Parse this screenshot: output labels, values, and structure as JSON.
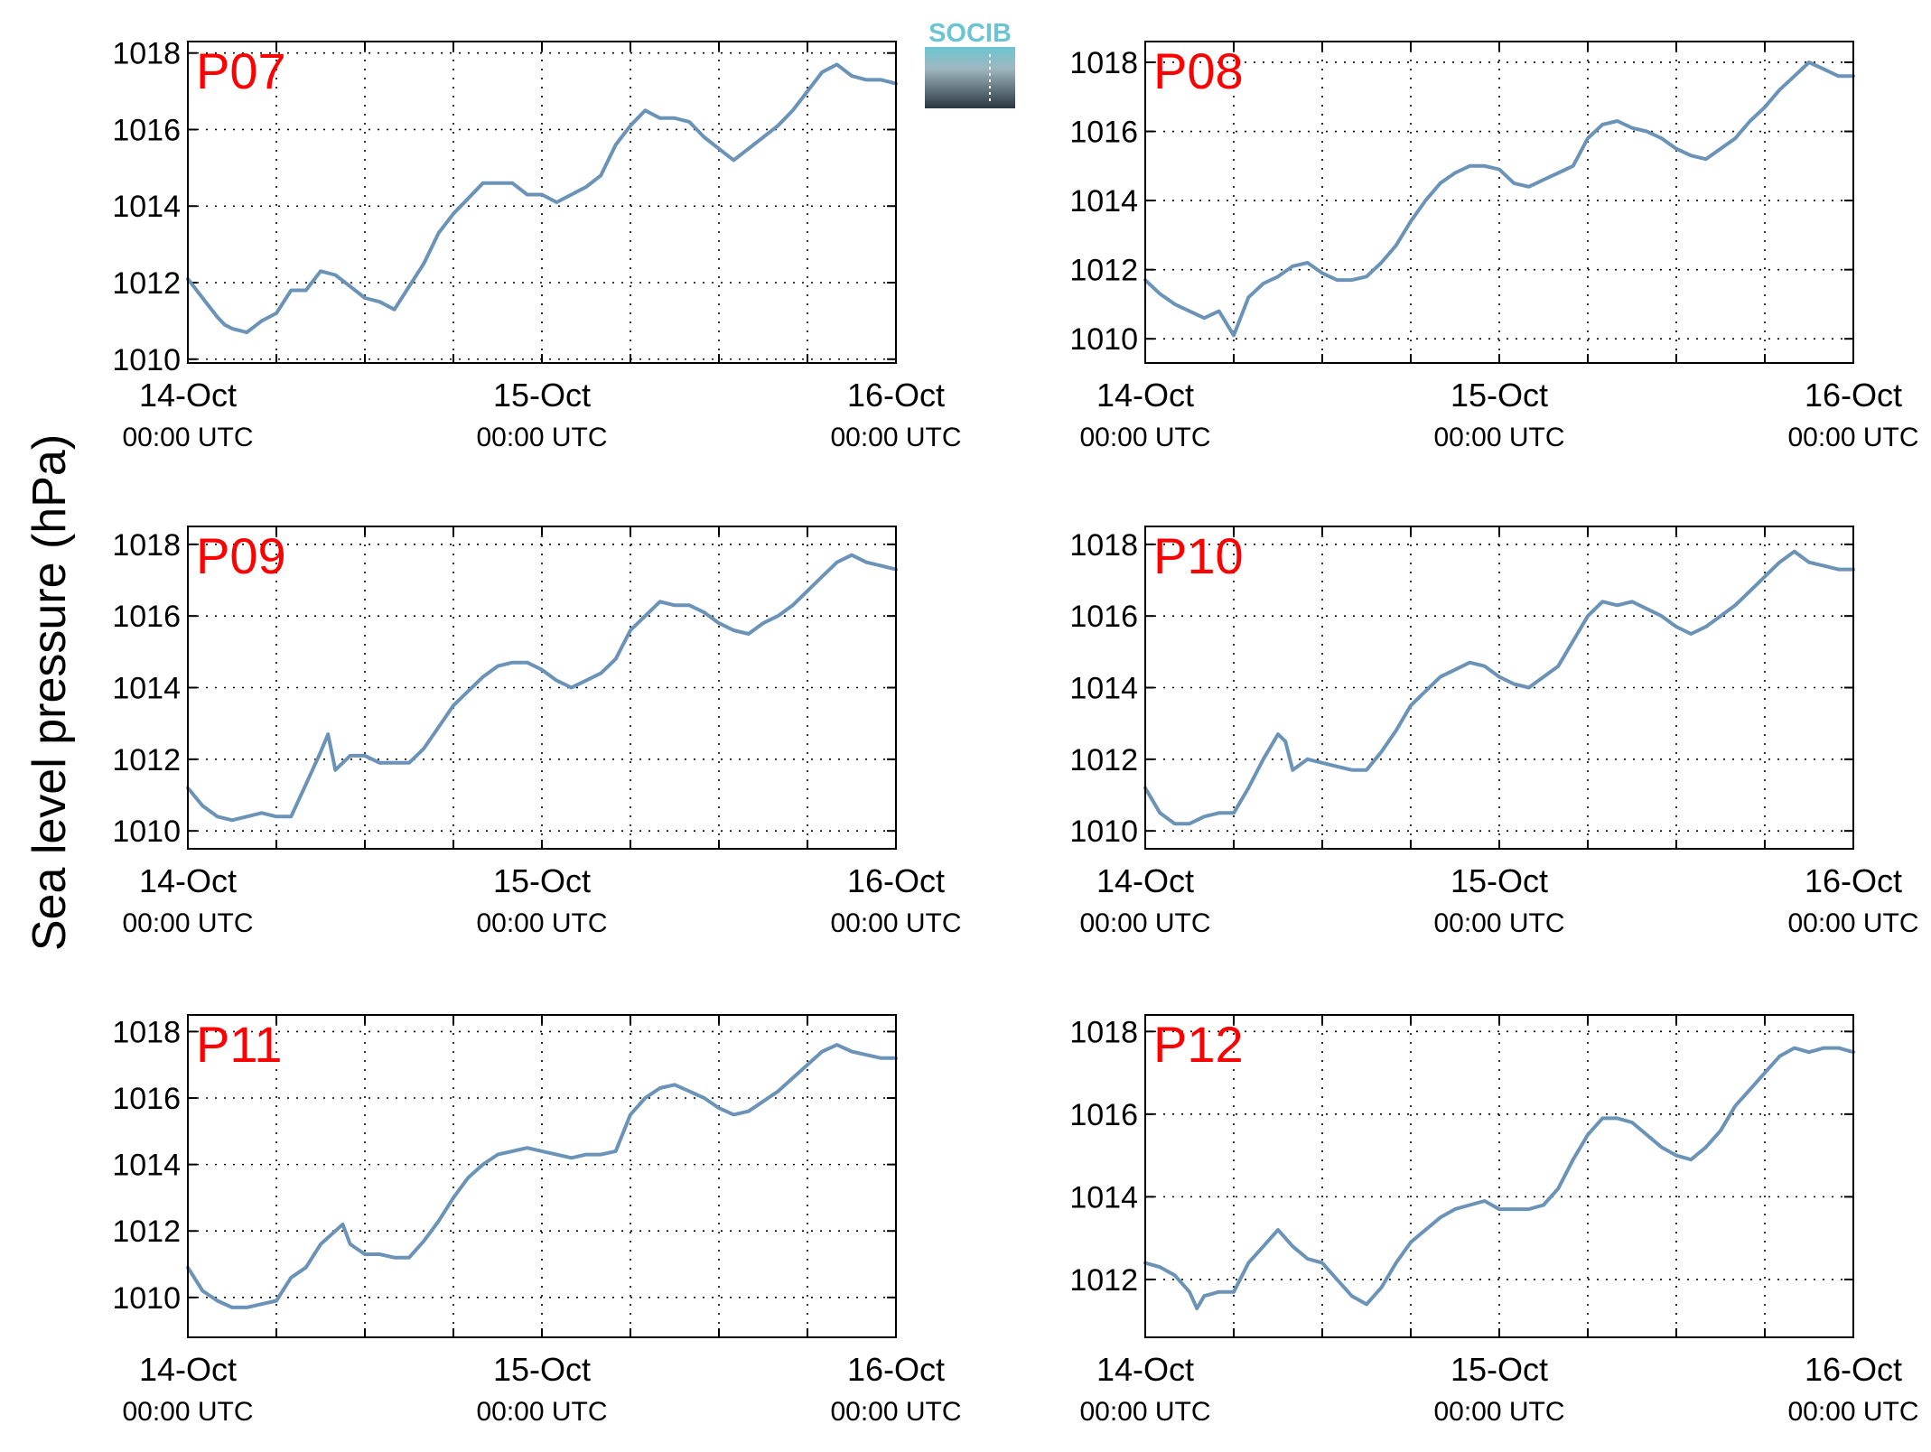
{
  "ylabel": "Sea level pressure (hPa)",
  "logo_text": "SOCIB",
  "colors": {
    "series": "#6a93b7",
    "label": "#ff0000",
    "logo_top": "#6cc4d2",
    "logo_bottom": "#2b3742"
  },
  "xticks": [
    {
      "day": "14-Oct",
      "time": "00:00 UTC"
    },
    {
      "day": "15-Oct",
      "time": "00:00 UTC"
    },
    {
      "day": "16-Oct",
      "time": "00:00 UTC"
    }
  ],
  "chart_data": [
    {
      "type": "line",
      "label": "P07",
      "grid": true,
      "xlabel": "",
      "xlim_hours": [
        0,
        48
      ],
      "yticks": [
        1010,
        1012,
        1014,
        1016,
        1018
      ],
      "ylim": [
        1009.9,
        1018.3
      ],
      "series": [
        {
          "x": [
            0,
            1,
            2,
            2.5,
            3,
            4,
            5,
            6,
            7,
            8,
            9,
            10,
            11,
            12,
            13,
            14,
            15,
            16,
            17,
            18,
            19,
            20,
            21,
            22,
            23,
            24,
            25,
            26,
            27,
            28,
            29,
            30,
            31,
            32,
            33,
            34,
            35,
            36,
            37,
            38,
            39,
            40,
            41,
            42,
            43,
            44,
            45,
            46,
            47,
            48
          ],
          "y": [
            1012.1,
            1011.6,
            1011.1,
            1010.9,
            1010.8,
            1010.7,
            1011.0,
            1011.2,
            1011.8,
            1011.8,
            1012.3,
            1012.2,
            1011.9,
            1011.6,
            1011.5,
            1011.3,
            1011.9,
            1012.5,
            1013.3,
            1013.8,
            1014.2,
            1014.6,
            1014.6,
            1014.6,
            1014.3,
            1014.3,
            1014.1,
            1014.3,
            1014.5,
            1014.8,
            1015.6,
            1016.1,
            1016.5,
            1016.3,
            1016.3,
            1016.2,
            1015.8,
            1015.5,
            1015.2,
            1015.5,
            1015.8,
            1016.1,
            1016.5,
            1017.0,
            1017.5,
            1017.7,
            1017.4,
            1017.3,
            1017.3,
            1017.2
          ]
        }
      ]
    },
    {
      "type": "line",
      "label": "P08",
      "grid": true,
      "xlabel": "",
      "xlim_hours": [
        0,
        48
      ],
      "yticks": [
        1010,
        1012,
        1014,
        1016,
        1018
      ],
      "ylim": [
        1009.3,
        1018.6
      ],
      "series": [
        {
          "x": [
            0,
            1,
            2,
            3,
            4,
            5,
            6,
            7,
            8,
            9,
            10,
            11,
            12,
            13,
            14,
            15,
            16,
            17,
            18,
            19,
            20,
            21,
            22,
            23,
            24,
            25,
            26,
            27,
            28,
            29,
            30,
            31,
            32,
            33,
            34,
            35,
            36,
            37,
            38,
            39,
            40,
            41,
            42,
            43,
            44,
            45,
            46,
            47,
            48
          ],
          "y": [
            1011.7,
            1011.3,
            1011.0,
            1010.8,
            1010.6,
            1010.8,
            1010.1,
            1011.2,
            1011.6,
            1011.8,
            1012.1,
            1012.2,
            1011.9,
            1011.7,
            1011.7,
            1011.8,
            1012.2,
            1012.7,
            1013.4,
            1014.0,
            1014.5,
            1014.8,
            1015.0,
            1015.0,
            1014.9,
            1014.5,
            1014.4,
            1014.6,
            1014.8,
            1015.0,
            1015.8,
            1016.2,
            1016.3,
            1016.1,
            1016.0,
            1015.8,
            1015.5,
            1015.3,
            1015.2,
            1015.5,
            1015.8,
            1016.3,
            1016.7,
            1017.2,
            1017.6,
            1018.0,
            1017.8,
            1017.6,
            1017.6
          ]
        }
      ]
    },
    {
      "type": "line",
      "label": "P09",
      "grid": true,
      "xlabel": "",
      "xlim_hours": [
        0,
        48
      ],
      "yticks": [
        1010,
        1012,
        1014,
        1016,
        1018
      ],
      "ylim": [
        1009.5,
        1018.5
      ],
      "series": [
        {
          "x": [
            0,
            1,
            2,
            3,
            4,
            5,
            6,
            7,
            8,
            9,
            9.5,
            10,
            11,
            12,
            13,
            14,
            15,
            16,
            17,
            18,
            19,
            20,
            21,
            22,
            23,
            24,
            25,
            26,
            27,
            28,
            29,
            30,
            31,
            32,
            33,
            34,
            35,
            36,
            37,
            38,
            39,
            40,
            41,
            42,
            43,
            44,
            45,
            46,
            47,
            48
          ],
          "y": [
            1011.2,
            1010.7,
            1010.4,
            1010.3,
            1010.4,
            1010.5,
            1010.4,
            1010.4,
            1011.3,
            1012.2,
            1012.7,
            1011.7,
            1012.1,
            1012.1,
            1011.9,
            1011.9,
            1011.9,
            1012.3,
            1012.9,
            1013.5,
            1013.9,
            1014.3,
            1014.6,
            1014.7,
            1014.7,
            1014.5,
            1014.2,
            1014.0,
            1014.2,
            1014.4,
            1014.8,
            1015.6,
            1016.0,
            1016.4,
            1016.3,
            1016.3,
            1016.1,
            1015.8,
            1015.6,
            1015.5,
            1015.8,
            1016.0,
            1016.3,
            1016.7,
            1017.1,
            1017.5,
            1017.7,
            1017.5,
            1017.4,
            1017.3
          ]
        }
      ]
    },
    {
      "type": "line",
      "label": "P10",
      "grid": true,
      "xlabel": "",
      "xlim_hours": [
        0,
        48
      ],
      "yticks": [
        1010,
        1012,
        1014,
        1016,
        1018
      ],
      "ylim": [
        1009.5,
        1018.5
      ],
      "series": [
        {
          "x": [
            0,
            1,
            2,
            3,
            4,
            5,
            6,
            7,
            8,
            9,
            9.5,
            10,
            11,
            12,
            13,
            14,
            15,
            16,
            17,
            18,
            19,
            20,
            21,
            22,
            23,
            24,
            25,
            26,
            27,
            28,
            29,
            30,
            31,
            32,
            33,
            34,
            35,
            36,
            37,
            38,
            39,
            40,
            41,
            42,
            43,
            44,
            45,
            46,
            47,
            48
          ],
          "y": [
            1011.2,
            1010.5,
            1010.2,
            1010.2,
            1010.4,
            1010.5,
            1010.5,
            1011.2,
            1012.0,
            1012.7,
            1012.5,
            1011.7,
            1012.0,
            1011.9,
            1011.8,
            1011.7,
            1011.7,
            1012.2,
            1012.8,
            1013.5,
            1013.9,
            1014.3,
            1014.5,
            1014.7,
            1014.6,
            1014.3,
            1014.1,
            1014.0,
            1014.3,
            1014.6,
            1015.3,
            1016.0,
            1016.4,
            1016.3,
            1016.4,
            1016.2,
            1016.0,
            1015.7,
            1015.5,
            1015.7,
            1016.0,
            1016.3,
            1016.7,
            1017.1,
            1017.5,
            1017.8,
            1017.5,
            1017.4,
            1017.3,
            1017.3
          ]
        }
      ]
    },
    {
      "type": "line",
      "label": "P11",
      "grid": true,
      "xlabel": "",
      "xlim_hours": [
        0,
        48
      ],
      "yticks": [
        1010,
        1012,
        1014,
        1016,
        1018
      ],
      "ylim": [
        1008.8,
        1018.5
      ],
      "series": [
        {
          "x": [
            0,
            1,
            2,
            3,
            4,
            5,
            6,
            7,
            8,
            9,
            10,
            10.5,
            11,
            12,
            13,
            14,
            15,
            16,
            17,
            18,
            19,
            20,
            21,
            22,
            23,
            24,
            25,
            26,
            27,
            28,
            29,
            30,
            31,
            32,
            33,
            34,
            35,
            36,
            37,
            38,
            39,
            40,
            41,
            42,
            43,
            44,
            45,
            46,
            47,
            48
          ],
          "y": [
            1010.9,
            1010.2,
            1009.9,
            1009.7,
            1009.7,
            1009.8,
            1009.9,
            1010.6,
            1010.9,
            1011.6,
            1012.0,
            1012.2,
            1011.6,
            1011.3,
            1011.3,
            1011.2,
            1011.2,
            1011.7,
            1012.3,
            1013.0,
            1013.6,
            1014.0,
            1014.3,
            1014.4,
            1014.5,
            1014.4,
            1014.3,
            1014.2,
            1014.3,
            1014.3,
            1014.4,
            1015.5,
            1016.0,
            1016.3,
            1016.4,
            1016.2,
            1016.0,
            1015.7,
            1015.5,
            1015.6,
            1015.9,
            1016.2,
            1016.6,
            1017.0,
            1017.4,
            1017.6,
            1017.4,
            1017.3,
            1017.2,
            1017.2
          ]
        }
      ]
    },
    {
      "type": "line",
      "label": "P12",
      "grid": true,
      "xlabel": "",
      "xlim_hours": [
        0,
        48
      ],
      "yticks": [
        1012,
        1014,
        1016,
        1018
      ],
      "ylim": [
        1010.6,
        1018.4
      ],
      "series": [
        {
          "x": [
            0,
            1,
            2,
            3,
            3.5,
            4,
            5,
            6,
            7,
            8,
            9,
            10,
            11,
            12,
            13,
            14,
            15,
            16,
            17,
            18,
            19,
            20,
            21,
            22,
            23,
            24,
            25,
            26,
            27,
            28,
            29,
            30,
            31,
            32,
            33,
            34,
            35,
            36,
            37,
            38,
            39,
            40,
            41,
            42,
            43,
            44,
            45,
            46,
            47,
            48
          ],
          "y": [
            1012.4,
            1012.3,
            1012.1,
            1011.7,
            1011.3,
            1011.6,
            1011.7,
            1011.7,
            1012.4,
            1012.8,
            1013.2,
            1012.8,
            1012.5,
            1012.4,
            1012.0,
            1011.6,
            1011.4,
            1011.8,
            1012.4,
            1012.9,
            1013.2,
            1013.5,
            1013.7,
            1013.8,
            1013.9,
            1013.7,
            1013.7,
            1013.7,
            1013.8,
            1014.2,
            1014.9,
            1015.5,
            1015.9,
            1015.9,
            1015.8,
            1015.5,
            1015.2,
            1015.0,
            1014.9,
            1015.2,
            1015.6,
            1016.2,
            1016.6,
            1017.0,
            1017.4,
            1017.6,
            1017.5,
            1017.6,
            1017.6,
            1017.5
          ]
        }
      ]
    }
  ]
}
